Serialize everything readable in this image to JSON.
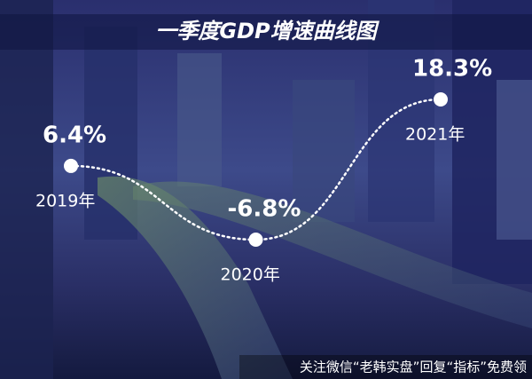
{
  "chart_data": {
    "type": "line",
    "title": "一季度GDP增速曲线图",
    "categories": [
      "2019年",
      "2020年",
      "2021年"
    ],
    "values": [
      6.4,
      -6.8,
      18.3
    ],
    "value_labels": [
      "6.4%",
      "-6.8%",
      "18.3%"
    ],
    "color": "#ffffff",
    "annotation": "关注微信“老韩实盘”回复“指标”免费领"
  }
}
